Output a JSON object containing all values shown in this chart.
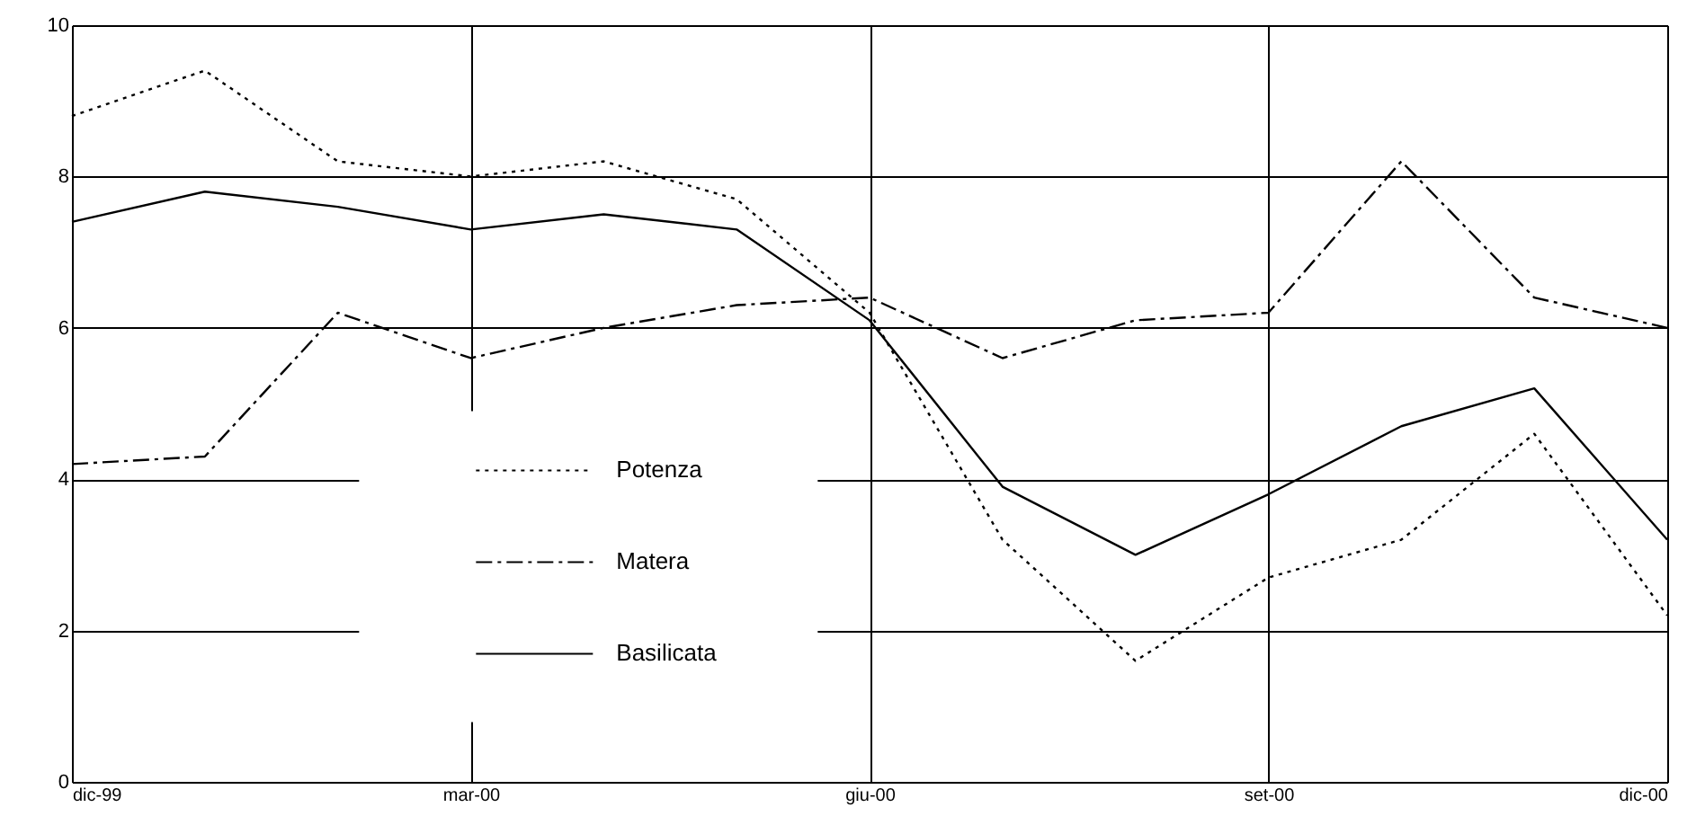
{
  "chart_data": {
    "type": "line",
    "categories": [
      "dic-99",
      null,
      null,
      "mar-00",
      null,
      null,
      "giu-00",
      null,
      null,
      "set-00",
      null,
      null,
      "dic-00"
    ],
    "ylim": [
      0,
      10
    ],
    "yticks": [
      0,
      2,
      4,
      6,
      8,
      10
    ],
    "grid": true,
    "legend": "bottom left",
    "marker": "none",
    "series": [
      {
        "name": "Potenza",
        "color": "#000000",
        "line_style": "dotted",
        "values": [
          8.8,
          9.4,
          8.2,
          8.0,
          8.2,
          7.7,
          6.2,
          3.2,
          1.6,
          2.7,
          3.2,
          4.6,
          2.2
        ]
      },
      {
        "name": "Matera",
        "color": "#000000",
        "line_style": "dashed",
        "values": [
          4.2,
          4.3,
          6.2,
          5.6,
          6.0,
          6.3,
          6.4,
          5.6,
          6.1,
          6.2,
          8.2,
          6.4,
          6.0
        ]
      },
      {
        "name": "Basilicata",
        "color": "#000000",
        "line_style": "solid",
        "values": [
          7.4,
          7.8,
          7.6,
          7.3,
          7.5,
          7.3,
          6.1,
          3.9,
          3.0,
          3.8,
          4.7,
          5.2,
          3.2
        ]
      }
    ]
  }
}
